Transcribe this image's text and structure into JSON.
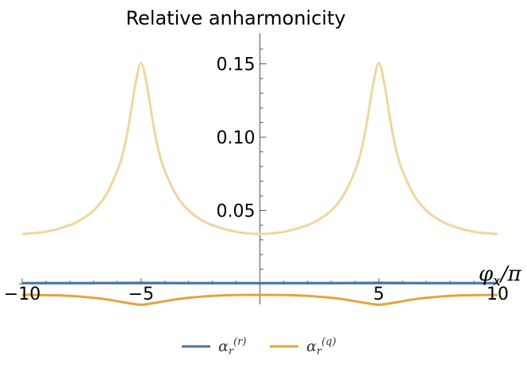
{
  "chart_data": {
    "type": "line",
    "title": "Relative anharmonicity",
    "xlabel": "φ_x/π",
    "ylabel": "",
    "xlim": [
      -10,
      10
    ],
    "ylim": [
      -0.014,
      0.16
    ],
    "xticks": [
      -10,
      -5,
      5,
      10
    ],
    "xtick_labels": [
      "−10",
      "−5",
      "5",
      "10"
    ],
    "yticks": [
      0.05,
      0.1,
      0.15
    ],
    "ytick_labels": [
      "0.05",
      "0.10",
      "0.15"
    ],
    "grid": false,
    "legend_position": "bottom",
    "series": [
      {
        "name": "α_r^(r)",
        "legend_base": "α",
        "legend_sub": "r",
        "legend_sup": "(r)",
        "color": "#4a6fa5",
        "x": [
          -10,
          -8,
          -6,
          -5,
          -4,
          -2,
          0,
          2,
          4,
          5,
          6,
          8,
          10
        ],
        "values": [
          0.0005,
          0.0005,
          0.0006,
          0.0007,
          0.0006,
          0.0005,
          0.0005,
          0.0005,
          0.0006,
          0.0007,
          0.0006,
          0.0005,
          0.0005
        ]
      },
      {
        "name": "α_r^(q)",
        "legend_base": "α",
        "legend_sub": "r",
        "legend_sup": "(q)",
        "color": "#e3a43a",
        "x": [
          -10,
          -9,
          -8,
          -7,
          -6.5,
          -6,
          -5.5,
          -5,
          -4.5,
          -4,
          -3.5,
          -3,
          -2,
          -1,
          0,
          1,
          2,
          3,
          3.5,
          4,
          4.5,
          5,
          5.5,
          6,
          6.5,
          7,
          8,
          9,
          10
        ],
        "values": [
          -0.0075,
          -0.0077,
          -0.0082,
          -0.0095,
          -0.0105,
          -0.0118,
          -0.0132,
          -0.0142,
          -0.0132,
          -0.0118,
          -0.0105,
          -0.0095,
          -0.0082,
          -0.0076,
          -0.0075,
          -0.0076,
          -0.0082,
          -0.0095,
          -0.0105,
          -0.0118,
          -0.0132,
          -0.0142,
          -0.0132,
          -0.0118,
          -0.0105,
          -0.0095,
          -0.0082,
          -0.0077,
          -0.0075
        ]
      },
      {
        "name": "",
        "color": "#f1d59e",
        "x": [
          -10,
          -9,
          -8,
          -7.5,
          -7,
          -6.5,
          -6,
          -5.75,
          -5.5,
          -5.25,
          -5,
          -4.75,
          -4.5,
          -4.25,
          -4,
          -3.5,
          -3,
          -2.5,
          -2,
          -1,
          0,
          1,
          2,
          2.5,
          3,
          3.5,
          4,
          4.25,
          4.5,
          4.75,
          5,
          5.25,
          5.5,
          5.75,
          6,
          6.5,
          7,
          7.5,
          8,
          9,
          10
        ],
        "values": [
          0.034,
          0.0355,
          0.04,
          0.044,
          0.05,
          0.06,
          0.077,
          0.09,
          0.11,
          0.135,
          0.1505,
          0.135,
          0.11,
          0.09,
          0.077,
          0.06,
          0.05,
          0.044,
          0.04,
          0.0355,
          0.034,
          0.0355,
          0.04,
          0.044,
          0.05,
          0.06,
          0.077,
          0.09,
          0.11,
          0.135,
          0.1505,
          0.135,
          0.11,
          0.09,
          0.077,
          0.06,
          0.05,
          0.044,
          0.04,
          0.0355,
          0.034
        ]
      }
    ]
  }
}
